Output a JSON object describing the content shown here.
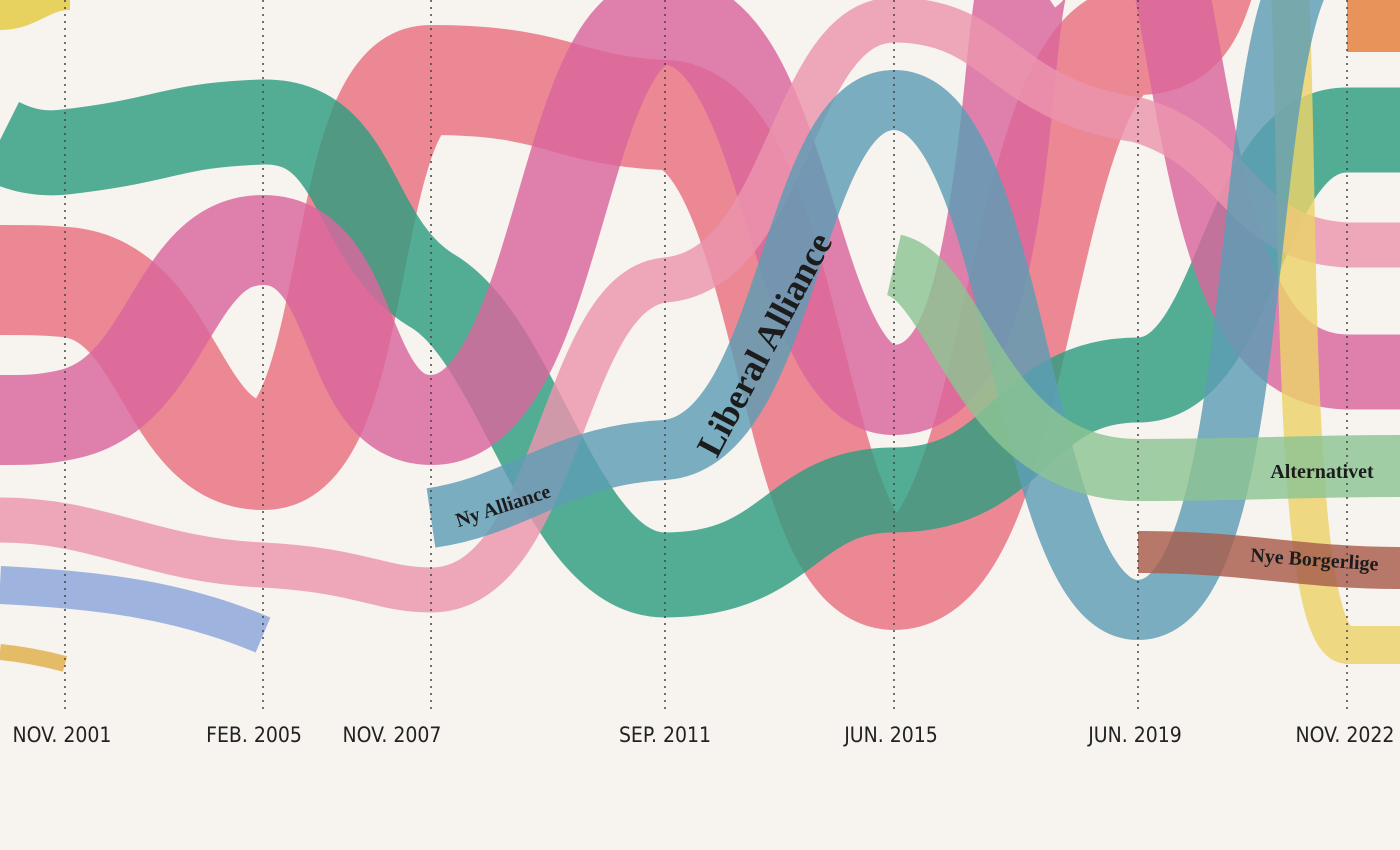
{
  "axis": {
    "labels": [
      "NOV. 2001",
      "FEB. 2005",
      "NOV. 2007",
      "SEP. 2011",
      "JUN. 2015",
      "JUN. 2019",
      "NOV. 2022"
    ]
  },
  "party_labels": [
    "Ny Alliance",
    "Liberal Alliance",
    "Alternativet",
    "Nye Borgerlige"
  ]
}
